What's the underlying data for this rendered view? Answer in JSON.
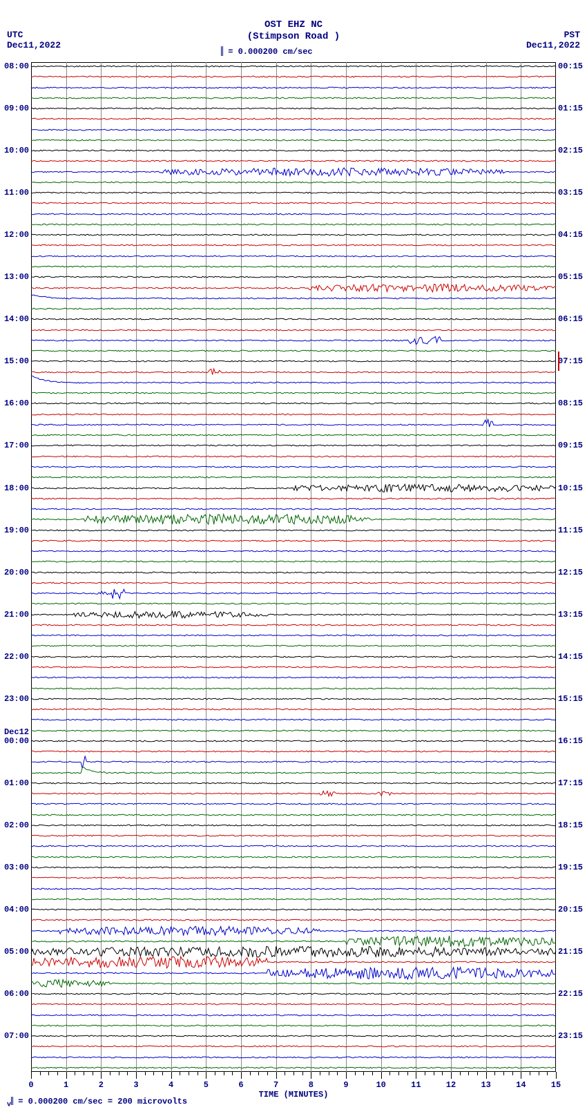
{
  "header": {
    "line1": "OST EHZ NC",
    "line2": "(Stimpson Road )"
  },
  "scale_note": "= 0.000200 cm/sec",
  "corners": {
    "tl_line1": "UTC",
    "tl_line2": "Dec11,2022",
    "tr_line1": "PST",
    "tr_line2": "Dec11,2022"
  },
  "footer": "= 0.000200 cm/sec =    200 microvolts",
  "xaxis": {
    "title": "TIME (MINUTES)",
    "min": 0,
    "max": 15,
    "major_step": 1,
    "minor_per_major": 4
  },
  "grid_color": "#888888",
  "plot_border_color": "#000000",
  "background_color": "#ffffff",
  "text_color": "#000080",
  "trace_colors": [
    "#000000",
    "#cc0000",
    "#0000cc",
    "#006600"
  ],
  "n_traces": 96,
  "left_labels": [
    {
      "index": 0,
      "text": "08:00"
    },
    {
      "index": 4,
      "text": "09:00"
    },
    {
      "index": 8,
      "text": "10:00"
    },
    {
      "index": 12,
      "text": "11:00"
    },
    {
      "index": 16,
      "text": "12:00"
    },
    {
      "index": 20,
      "text": "13:00"
    },
    {
      "index": 24,
      "text": "14:00"
    },
    {
      "index": 28,
      "text": "15:00"
    },
    {
      "index": 32,
      "text": "16:00"
    },
    {
      "index": 36,
      "text": "17:00"
    },
    {
      "index": 40,
      "text": "18:00"
    },
    {
      "index": 44,
      "text": "19:00"
    },
    {
      "index": 48,
      "text": "20:00"
    },
    {
      "index": 52,
      "text": "21:00"
    },
    {
      "index": 56,
      "text": "22:00"
    },
    {
      "index": 60,
      "text": "23:00"
    },
    {
      "index": 64,
      "text": "00:00"
    },
    {
      "index": 68,
      "text": "01:00"
    },
    {
      "index": 72,
      "text": "02:00"
    },
    {
      "index": 76,
      "text": "03:00"
    },
    {
      "index": 80,
      "text": "04:00"
    },
    {
      "index": 84,
      "text": "05:00"
    },
    {
      "index": 88,
      "text": "06:00"
    },
    {
      "index": 92,
      "text": "07:00"
    }
  ],
  "day_labels": [
    {
      "index": 64,
      "text": "Dec12"
    }
  ],
  "right_labels": [
    {
      "index": 0,
      "text": "00:15"
    },
    {
      "index": 4,
      "text": "01:15"
    },
    {
      "index": 8,
      "text": "02:15"
    },
    {
      "index": 12,
      "text": "03:15"
    },
    {
      "index": 16,
      "text": "04:15"
    },
    {
      "index": 20,
      "text": "05:15"
    },
    {
      "index": 24,
      "text": "06:15"
    },
    {
      "index": 28,
      "text": "07:15"
    },
    {
      "index": 32,
      "text": "08:15"
    },
    {
      "index": 36,
      "text": "09:15"
    },
    {
      "index": 40,
      "text": "10:15"
    },
    {
      "index": 44,
      "text": "11:15"
    },
    {
      "index": 48,
      "text": "12:15"
    },
    {
      "index": 52,
      "text": "13:15"
    },
    {
      "index": 56,
      "text": "14:15"
    },
    {
      "index": 60,
      "text": "15:15"
    },
    {
      "index": 64,
      "text": "16:15"
    },
    {
      "index": 68,
      "text": "17:15"
    },
    {
      "index": 72,
      "text": "18:15"
    },
    {
      "index": 76,
      "text": "19:15"
    },
    {
      "index": 80,
      "text": "20:15"
    },
    {
      "index": 84,
      "text": "21:15"
    },
    {
      "index": 88,
      "text": "22:15"
    },
    {
      "index": 92,
      "text": "23:15"
    }
  ],
  "events": [
    {
      "trace": 10,
      "start": 0.25,
      "end": 0.9,
      "amp": 6,
      "kind": "burst"
    },
    {
      "trace": 21,
      "start": 0.52,
      "end": 1.0,
      "amp": 6,
      "kind": "burst"
    },
    {
      "trace": 22,
      "start": 0.0,
      "end": 0.05,
      "amp": 5,
      "kind": "step"
    },
    {
      "trace": 26,
      "start": 0.72,
      "end": 0.78,
      "amp": 6,
      "kind": "spike"
    },
    {
      "trace": 29,
      "start": 0.34,
      "end": 0.36,
      "amp": 5,
      "kind": "spike"
    },
    {
      "trace": 30,
      "start": 0.0,
      "end": 0.07,
      "amp": 10,
      "kind": "dip"
    },
    {
      "trace": 34,
      "start": 0.86,
      "end": 0.88,
      "amp": 8,
      "kind": "spike"
    },
    {
      "trace": 40,
      "start": 0.5,
      "end": 1.0,
      "amp": 6,
      "kind": "burst"
    },
    {
      "trace": 43,
      "start": 0.1,
      "end": 0.65,
      "amp": 8,
      "kind": "burst"
    },
    {
      "trace": 50,
      "start": 0.12,
      "end": 0.18,
      "amp": 10,
      "kind": "spikes"
    },
    {
      "trace": 52,
      "start": 0.08,
      "end": 0.45,
      "amp": 5,
      "kind": "burst"
    },
    {
      "trace": 66,
      "start": 0.095,
      "end": 0.105,
      "amp": 12,
      "kind": "spike"
    },
    {
      "trace": 67,
      "start": 0.095,
      "end": 0.14,
      "amp": 10,
      "kind": "dip"
    },
    {
      "trace": 69,
      "start": 0.55,
      "end": 0.58,
      "amp": 4,
      "kind": "spike"
    },
    {
      "trace": 69,
      "start": 0.66,
      "end": 0.69,
      "amp": 4,
      "kind": "spike"
    },
    {
      "trace": 82,
      "start": 0.05,
      "end": 0.55,
      "amp": 7,
      "kind": "burst"
    },
    {
      "trace": 83,
      "start": 0.6,
      "end": 1.0,
      "amp": 8,
      "kind": "burst"
    },
    {
      "trace": 84,
      "start": 0.0,
      "end": 1.0,
      "amp": 8,
      "kind": "burst"
    },
    {
      "trace": 85,
      "start": 0.0,
      "end": 0.45,
      "amp": 9,
      "kind": "burst"
    },
    {
      "trace": 86,
      "start": 0.45,
      "end": 1.0,
      "amp": 9,
      "kind": "burst"
    },
    {
      "trace": 87,
      "start": 0.0,
      "end": 0.15,
      "amp": 6,
      "kind": "burst"
    }
  ],
  "right_spike": {
    "trace": 28,
    "amp": 14
  }
}
